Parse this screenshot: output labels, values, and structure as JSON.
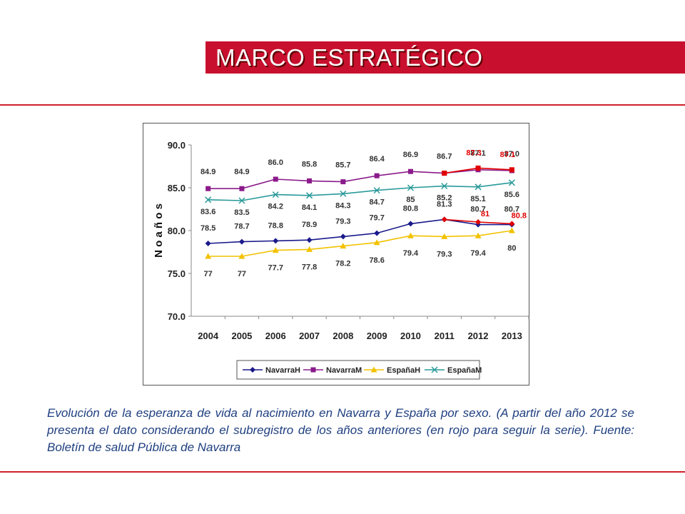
{
  "header": {
    "title": "MARCO ESTRATÉGICO"
  },
  "caption": "Evolución de la esperanza de vida al nacimiento en Navarra y España por sexo. (A partir del año 2012 se presenta el dato considerando el subregistro de los años anteriores (en rojo para seguir la serie). Fuente: Boletín de salud Pública de Navarra",
  "colors": {
    "accent": "#c8102e",
    "caption_text": "#1f3f80",
    "highlight": "#e00000"
  },
  "chart_data": {
    "type": "line",
    "ylabel": "N o  a ñ o s",
    "xlabel": "",
    "ylim": [
      70.0,
      90.0
    ],
    "yticks": [
      "70.0",
      "75.0",
      "80.0",
      "85.0",
      "90.0"
    ],
    "categories": [
      "2004",
      "2005",
      "2006",
      "2007",
      "2008",
      "2009",
      "2010",
      "2011",
      "2012",
      "2013"
    ],
    "grid": false,
    "legend_position": "bottom",
    "series": [
      {
        "name": "NavarraH",
        "color": "#1a1a8c",
        "marker": "diamond",
        "values": [
          78.5,
          78.7,
          78.8,
          78.9,
          79.3,
          79.7,
          80.8,
          81.3,
          80.7,
          80.7
        ],
        "labels": [
          "78.5",
          "78.7",
          "78.8",
          "78.9",
          "79.3",
          "79.7",
          "80.8",
          "81.3",
          "80.7",
          "80.7"
        ]
      },
      {
        "name": "NavarraM",
        "color": "#8b1a8b",
        "marker": "square",
        "values": [
          84.9,
          84.9,
          86.0,
          85.8,
          85.7,
          86.4,
          86.9,
          86.7,
          87.1,
          87.0
        ],
        "labels": [
          "84.9",
          "84.9",
          "86.0",
          "85.8",
          "85.7",
          "86.4",
          "86.9",
          "86.7",
          "87.1",
          "87.0"
        ]
      },
      {
        "name": "EspañaH",
        "color": "#f2c200",
        "marker": "triangle",
        "values": [
          77,
          77,
          77.7,
          77.8,
          78.2,
          78.6,
          79.4,
          79.3,
          79.4,
          80
        ],
        "labels": [
          "77",
          "77",
          "77.7",
          "77.8",
          "78.2",
          "78.6",
          "79.4",
          "79.3",
          "79.4",
          "80"
        ]
      },
      {
        "name": "EspañaM",
        "color": "#2a9a9a",
        "marker": "x",
        "values": [
          83.6,
          83.5,
          84.2,
          84.1,
          84.3,
          84.7,
          85,
          85.2,
          85.1,
          85.6
        ],
        "labels": [
          "83.6",
          "83.5",
          "84.2",
          "84.1",
          "84.3",
          "84.7",
          "85",
          "85.2",
          "85.1",
          "85.6"
        ]
      }
    ],
    "adjusted_series": [
      {
        "of": "NavarraM",
        "color": "#e00000",
        "x": [
          "2011",
          "2012",
          "2013"
        ],
        "values": [
          86.7,
          87.3,
          87.1
        ],
        "labels": [
          "",
          "87.3",
          "87.1"
        ]
      },
      {
        "of": "NavarraH",
        "color": "#e00000",
        "x": [
          "2011",
          "2012",
          "2013"
        ],
        "values": [
          81.3,
          81,
          80.8
        ],
        "labels": [
          "",
          "81",
          "80.8"
        ]
      }
    ]
  }
}
